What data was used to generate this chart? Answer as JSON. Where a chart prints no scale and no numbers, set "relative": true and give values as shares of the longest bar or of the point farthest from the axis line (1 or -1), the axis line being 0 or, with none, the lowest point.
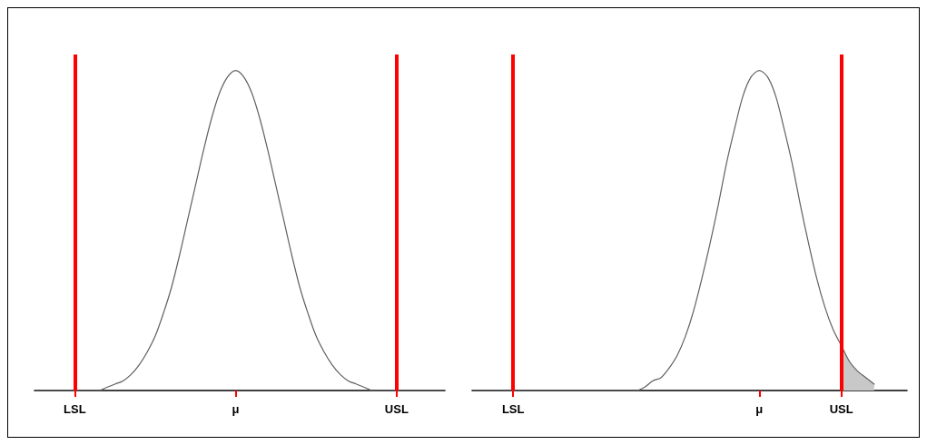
{
  "chart_data": [
    {
      "type": "line",
      "relative": true,
      "tick_labels": "x",
      "categories": [
        null,
        null,
        null,
        null,
        null,
        "LSL",
        null,
        null,
        null,
        null,
        null,
        null,
        null,
        null,
        null,
        null,
        null,
        null,
        null,
        null,
        null,
        null,
        null,
        null,
        null,
        "μ",
        null,
        null,
        null,
        null,
        null,
        null,
        null,
        null,
        null,
        null,
        null,
        null,
        null,
        null,
        null,
        null,
        null,
        null,
        null,
        "USL",
        null,
        null,
        null,
        null,
        null,
        null
      ],
      "series": [
        {
          "color": "#606060",
          "values": [
            0,
            0,
            0,
            0,
            0,
            0,
            0,
            0,
            0,
            0.01,
            0.02,
            0.03,
            0.05,
            0.08,
            0.12,
            0.17,
            0.24,
            0.32,
            0.42,
            0.53,
            0.64,
            0.75,
            0.85,
            0.93,
            0.98,
            1,
            0.98,
            0.93,
            0.85,
            0.75,
            0.64,
            0.53,
            0.42,
            0.32,
            0.24,
            0.17,
            0.12,
            0.08,
            0.05,
            0.03,
            0.02,
            0.01,
            0,
            0,
            0,
            0,
            0,
            0,
            0,
            0,
            0,
            0
          ]
        }
      ],
      "ref_lines": [
        {
          "axis": "x",
          "value": "LSL",
          "color": "#ff0000"
        },
        {
          "axis": "x",
          "value": "USL",
          "color": "#ff0000"
        }
      ]
    },
    {
      "type": "line",
      "relative": true,
      "tick_labels": "x",
      "categories": [
        null,
        null,
        null,
        null,
        null,
        "LSL",
        null,
        null,
        null,
        null,
        null,
        null,
        null,
        null,
        null,
        null,
        null,
        null,
        null,
        null,
        null,
        null,
        null,
        null,
        null,
        null,
        null,
        null,
        null,
        null,
        null,
        null,
        null,
        null,
        null,
        "μ",
        null,
        null,
        null,
        null,
        null,
        null,
        null,
        null,
        null,
        "USL",
        null,
        null,
        null,
        null,
        null,
        null,
        null,
        null
      ],
      "series": [
        {
          "color": "#606060",
          "values": [
            0,
            0,
            0,
            0,
            0,
            0,
            0,
            0,
            0,
            0,
            0,
            0,
            0,
            0,
            0,
            0,
            0,
            0,
            0,
            0,
            0,
            0.01,
            0.03,
            0.04,
            0.07,
            0.11,
            0.17,
            0.25,
            0.35,
            0.46,
            0.58,
            0.71,
            0.82,
            0.92,
            0.98,
            1,
            0.98,
            0.92,
            0.82,
            0.71,
            0.58,
            0.46,
            0.35,
            0.26,
            0.19,
            0.14,
            0.09,
            0.06,
            0.04,
            0.02,
            null,
            null,
            null,
            null
          ]
        },
        {
          "type": "area",
          "color": "#c8c8c8",
          "values": [
            null,
            null,
            null,
            null,
            null,
            null,
            null,
            null,
            null,
            null,
            null,
            null,
            null,
            null,
            null,
            null,
            null,
            null,
            null,
            null,
            null,
            null,
            null,
            null,
            null,
            null,
            null,
            null,
            null,
            null,
            null,
            null,
            null,
            null,
            null,
            null,
            null,
            null,
            null,
            null,
            null,
            null,
            null,
            null,
            null,
            0.14,
            0.09,
            0.06,
            0.04,
            0.02,
            null,
            null,
            null,
            null
          ]
        }
      ],
      "ref_lines": [
        {
          "axis": "x",
          "value": "LSL",
          "color": "#ff0000"
        },
        {
          "axis": "x",
          "value": "USL",
          "color": "#ff0000"
        }
      ]
    }
  ]
}
